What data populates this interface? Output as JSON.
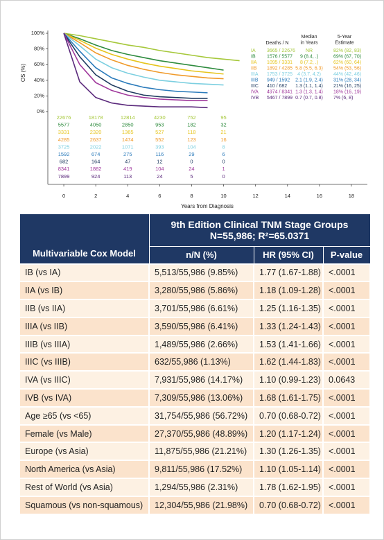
{
  "chart_data": {
    "type": "line",
    "y_label": "OS (%)",
    "x_label": "Years from Diagnosis",
    "x": [
      0,
      1,
      2,
      3,
      4,
      5,
      6,
      7,
      8,
      9,
      10,
      11
    ],
    "xlim": [
      -1,
      19
    ],
    "xticks": [
      0,
      2,
      4,
      6,
      8,
      10,
      12,
      14,
      16,
      18
    ],
    "ylim": [
      0,
      100
    ],
    "yticks": [
      {
        "value": 0,
        "label": "0%"
      },
      {
        "value": 20,
        "label": "20%"
      },
      {
        "value": 40,
        "label": "40%"
      },
      {
        "value": 60,
        "label": "60%"
      },
      {
        "value": 80,
        "label": "80%"
      },
      {
        "value": 100,
        "label": "100%"
      }
    ],
    "legend_headers": {
      "deaths": "Deaths / N",
      "median": [
        "Median",
        "in Years"
      ],
      "five_year": [
        "5-Year",
        "Estimate"
      ]
    },
    "series": [
      {
        "name": "IA",
        "color": "#a6c83b",
        "deaths_n": "3665 / 22676",
        "median": "NR",
        "five_year": "82% (82, 83)",
        "values": [
          100,
          97,
          93,
          89,
          85,
          82,
          78,
          75,
          72,
          69,
          67,
          65
        ],
        "at_risk": [
          22676,
          18178,
          12814,
          4230,
          752,
          95
        ]
      },
      {
        "name": "IB",
        "color": "#2e8b3e",
        "deaths_n": "1576 / 5577",
        "median": "9 (8.4, .)",
        "five_year": "69% (67, 70)",
        "values": [
          100,
          93,
          85,
          78,
          73,
          69,
          65,
          62,
          59,
          56,
          53,
          null
        ],
        "at_risk": [
          5577,
          4050,
          2850,
          953,
          182,
          32
        ]
      },
      {
        "name": "IIA",
        "color": "#e6c41c",
        "deaths_n": "1095 / 3331",
        "median": "8 (7.2, .)",
        "five_year": "62% (60, 64)",
        "values": [
          100,
          91,
          81,
          73,
          67,
          62,
          58,
          55,
          52,
          50,
          48,
          null
        ],
        "at_risk": [
          3331,
          2320,
          1365,
          527,
          118,
          21
        ]
      },
      {
        "name": "IIB",
        "color": "#f09a2a",
        "deaths_n": "1892 / 4285",
        "median": "5.8 (5.5, 6.3)",
        "five_year": "54% (53, 56)",
        "values": [
          100,
          88,
          75,
          66,
          59,
          54,
          50,
          47,
          45,
          43,
          42,
          null
        ],
        "at_risk": [
          4285,
          2637,
          1474,
          552,
          123,
          16
        ]
      },
      {
        "name": "IIIA",
        "color": "#7ccfe0",
        "deaths_n": "1753 / 3725",
        "median": "4 (3.7, 4.2)",
        "five_year": "44% (42, 46)",
        "values": [
          100,
          84,
          67,
          56,
          49,
          44,
          40,
          38,
          36,
          35,
          34,
          null
        ],
        "at_risk": [
          3725,
          2022,
          1071,
          393,
          104,
          8
        ]
      },
      {
        "name": "IIIB",
        "color": "#2b7bbb",
        "deaths_n": "949 / 1592",
        "median": "2.1 (1.9, 2.4)",
        "five_year": "31% (28, 34)",
        "values": [
          100,
          77,
          56,
          43,
          36,
          31,
          28,
          26,
          25,
          24,
          null,
          null
        ],
        "at_risk": [
          1592,
          674,
          275,
          116,
          29,
          6
        ]
      },
      {
        "name": "IIIC",
        "color": "#1e3a5f",
        "deaths_n": "410 / 682",
        "median": "1.3 (1.1, 1.4)",
        "five_year": "21% (16, 25)",
        "values": [
          100,
          70,
          47,
          34,
          26,
          21,
          19,
          18,
          17,
          17,
          null,
          null
        ],
        "at_risk": [
          682,
          164,
          47,
          12,
          0,
          0
        ]
      },
      {
        "name": "IVA",
        "color": "#a0399c",
        "deaths_n": "4974 / 8341",
        "median": "1.3 (1.3, 1.4)",
        "five_year": "18% (16, 19)",
        "values": [
          100,
          60,
          37,
          27,
          21,
          18,
          16,
          15,
          14,
          14,
          null,
          null
        ],
        "at_risk": [
          8341,
          1882,
          419,
          104,
          24,
          1
        ]
      },
      {
        "name": "IVB",
        "color": "#5b2a7c",
        "deaths_n": "5467 / 7899",
        "median": "0.7 (0.7, 0.8)",
        "five_year": "7% (6, 8)",
        "values": [
          100,
          38,
          18,
          11,
          8,
          7,
          6,
          6,
          6,
          5,
          null,
          null
        ],
        "at_risk": [
          7899,
          924,
          113,
          24,
          5,
          0
        ]
      }
    ]
  },
  "table": {
    "header": {
      "model": "Multivariable Cox Model",
      "group": "9th Edition Clinical TNM Stage Groups",
      "group_n": "N=55,986; R²=65.0371",
      "columns": [
        "n/N (%)",
        "HR (95% CI)",
        "P-value"
      ]
    },
    "rows": [
      [
        "IB (vs IA)",
        "5,513/55,986 (9.85%)",
        "1.77 (1.67-1.88)",
        "<.0001"
      ],
      [
        "IIA (vs IB)",
        "3,280/55,986 (5.86%)",
        "1.18 (1.09-1.28)",
        "<.0001"
      ],
      [
        "IIB (vs IIA)",
        "3,701/55,986 (6.61%)",
        "1.25 (1.16-1.35)",
        "<.0001"
      ],
      [
        "IIIA (vs IIB)",
        "3,590/55,986 (6.41%)",
        "1.33 (1.24-1.43)",
        "<.0001"
      ],
      [
        "IIIB (vs IIIA)",
        "1,489/55,986 (2.66%)",
        "1.53 (1.41-1.66)",
        "<.0001"
      ],
      [
        "IIIC (vs IIIB)",
        "632/55,986 (1.13%)",
        "1.62 (1.44-1.83)",
        "<.0001"
      ],
      [
        "IVA (vs IIIC)",
        "7,931/55,986 (14.17%)",
        "1.10 (0.99-1.23)",
        "0.0643"
      ],
      [
        "IVB (vs IVA)",
        "7,309/55,986 (13.06%)",
        "1.68 (1.61-1.75)",
        "<.0001"
      ],
      [
        "Age ≥65 (vs <65)",
        "31,754/55,986 (56.72%)",
        "0.70 (0.68-0.72)",
        "<.0001"
      ],
      [
        "Female (vs Male)",
        "27,370/55,986 (48.89%)",
        "1.20 (1.17-1.24)",
        "<.0001"
      ],
      [
        "Europe (vs Asia)",
        "11,875/55,986 (21.21%)",
        "1.30 (1.26-1.35)",
        "<.0001"
      ],
      [
        "North America (vs Asia)",
        "9,811/55,986 (17.52%)",
        "1.10 (1.05-1.14)",
        "<.0001"
      ],
      [
        "Rest of World (vs Asia)",
        "1,294/55,986 (2.31%)",
        "1.78 (1.62-1.95)",
        "<.0001"
      ],
      [
        "Squamous (vs non-squamous)",
        "12,304/55,986 (21.98%)",
        "0.70 (0.68-0.72)",
        "<.0001"
      ]
    ]
  }
}
